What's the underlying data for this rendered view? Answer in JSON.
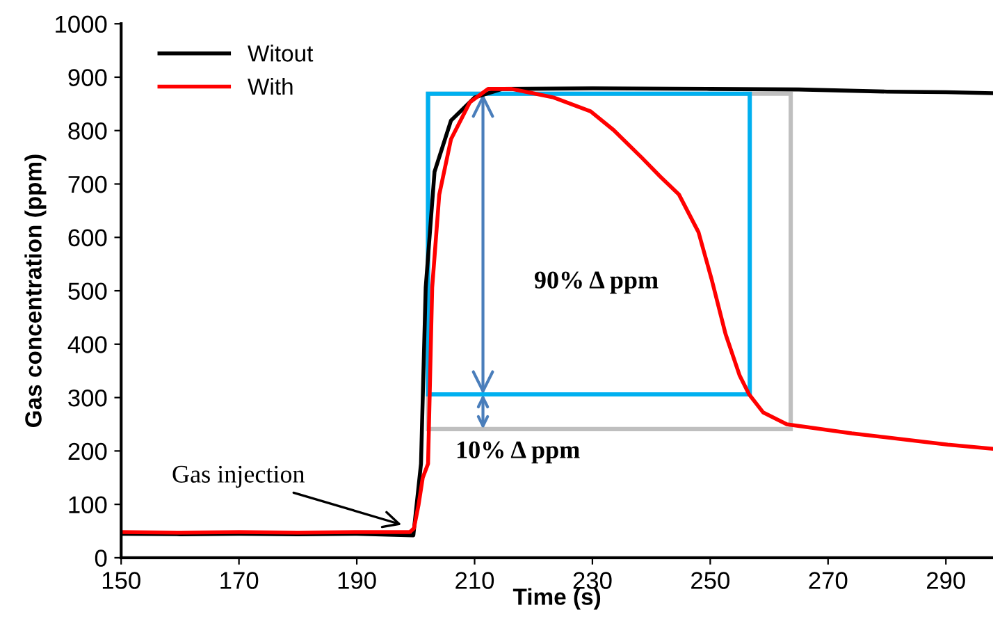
{
  "chart_data": {
    "type": "line",
    "xlabel": "Time (s)",
    "ylabel": "Gas concentration (ppm)",
    "xlim": [
      150,
      298
    ],
    "xticks": [
      150,
      170,
      190,
      210,
      230,
      250,
      270,
      290
    ],
    "ylim": [
      0,
      1000
    ],
    "yticks": [
      0,
      100,
      200,
      300,
      400,
      500,
      600,
      700,
      800,
      900,
      1000
    ],
    "grid": false,
    "legend": "top left",
    "marker": "none",
    "line_style": "solid",
    "series": [
      {
        "name": "Witout",
        "color": "#000000",
        "x": [
          150,
          160,
          170,
          180,
          190,
          199.6,
          200.9,
          201.7,
          203.2,
          206,
          210,
          214.7,
          230,
          250,
          265,
          280,
          290,
          298
        ],
        "values": [
          45,
          44,
          45,
          44,
          45,
          42,
          176,
          506,
          723,
          819,
          862,
          878,
          879,
          878,
          877,
          873,
          872,
          870
        ]
      },
      {
        "name": "With",
        "color": "#ff0000",
        "x": [
          150,
          160,
          170,
          180,
          190,
          199,
          199.7,
          200.5,
          201.2,
          202.1,
          202.8,
          204,
          206,
          209.2,
          212.3,
          216.3,
          223.4,
          229.7,
          233.6,
          238.4,
          241.5,
          244.7,
          248,
          250.2,
          252.6,
          255,
          256.6,
          259,
          263,
          274,
          290.3,
          298
        ],
        "values": [
          48,
          47,
          48,
          47,
          48,
          48,
          55,
          100,
          150,
          176,
          506,
          680,
          784,
          853,
          878,
          878,
          862,
          836,
          801,
          749,
          714,
          680,
          610,
          523,
          419,
          341,
          306,
          272,
          250,
          233,
          212,
          204
        ]
      }
    ],
    "annotations": [
      {
        "text": "Gas injection",
        "x": 197.6,
        "y": 62
      },
      "90% Δ ppm",
      "10% Δ ppm"
    ]
  }
}
